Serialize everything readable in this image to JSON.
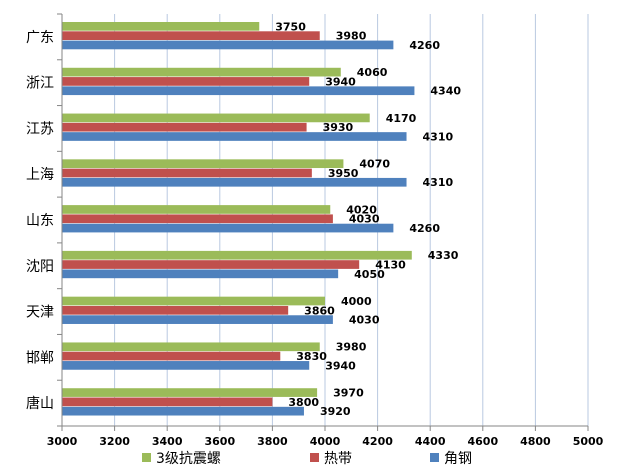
{
  "chart_data": {
    "type": "bar",
    "orientation": "horizontal",
    "categories": [
      "广东",
      "浙江",
      "江苏",
      "上海",
      "山东",
      "沈阳",
      "天津",
      "邯郸",
      "唐山"
    ],
    "series": [
      {
        "name": "3级抗震螺",
        "color": "#9BBB59",
        "values": [
          3750,
          4060,
          4170,
          4070,
          4020,
          4330,
          4000,
          3980,
          3970
        ]
      },
      {
        "name": "热带",
        "color": "#C0504D",
        "values": [
          3980,
          3940,
          3930,
          3950,
          4030,
          4130,
          3860,
          3830,
          3800
        ]
      },
      {
        "name": "角钢",
        "color": "#4F81BD",
        "values": [
          4260,
          4340,
          4310,
          4310,
          4260,
          4050,
          4030,
          3940,
          3920
        ]
      }
    ],
    "xlim": [
      3000,
      5000
    ],
    "xticks": [
      3000,
      3200,
      3400,
      3600,
      3800,
      4000,
      4200,
      4400,
      4600,
      4800,
      5000
    ],
    "title": "",
    "xlabel": "",
    "ylabel": "",
    "grid": "vertical",
    "legend_position": "bottom"
  }
}
